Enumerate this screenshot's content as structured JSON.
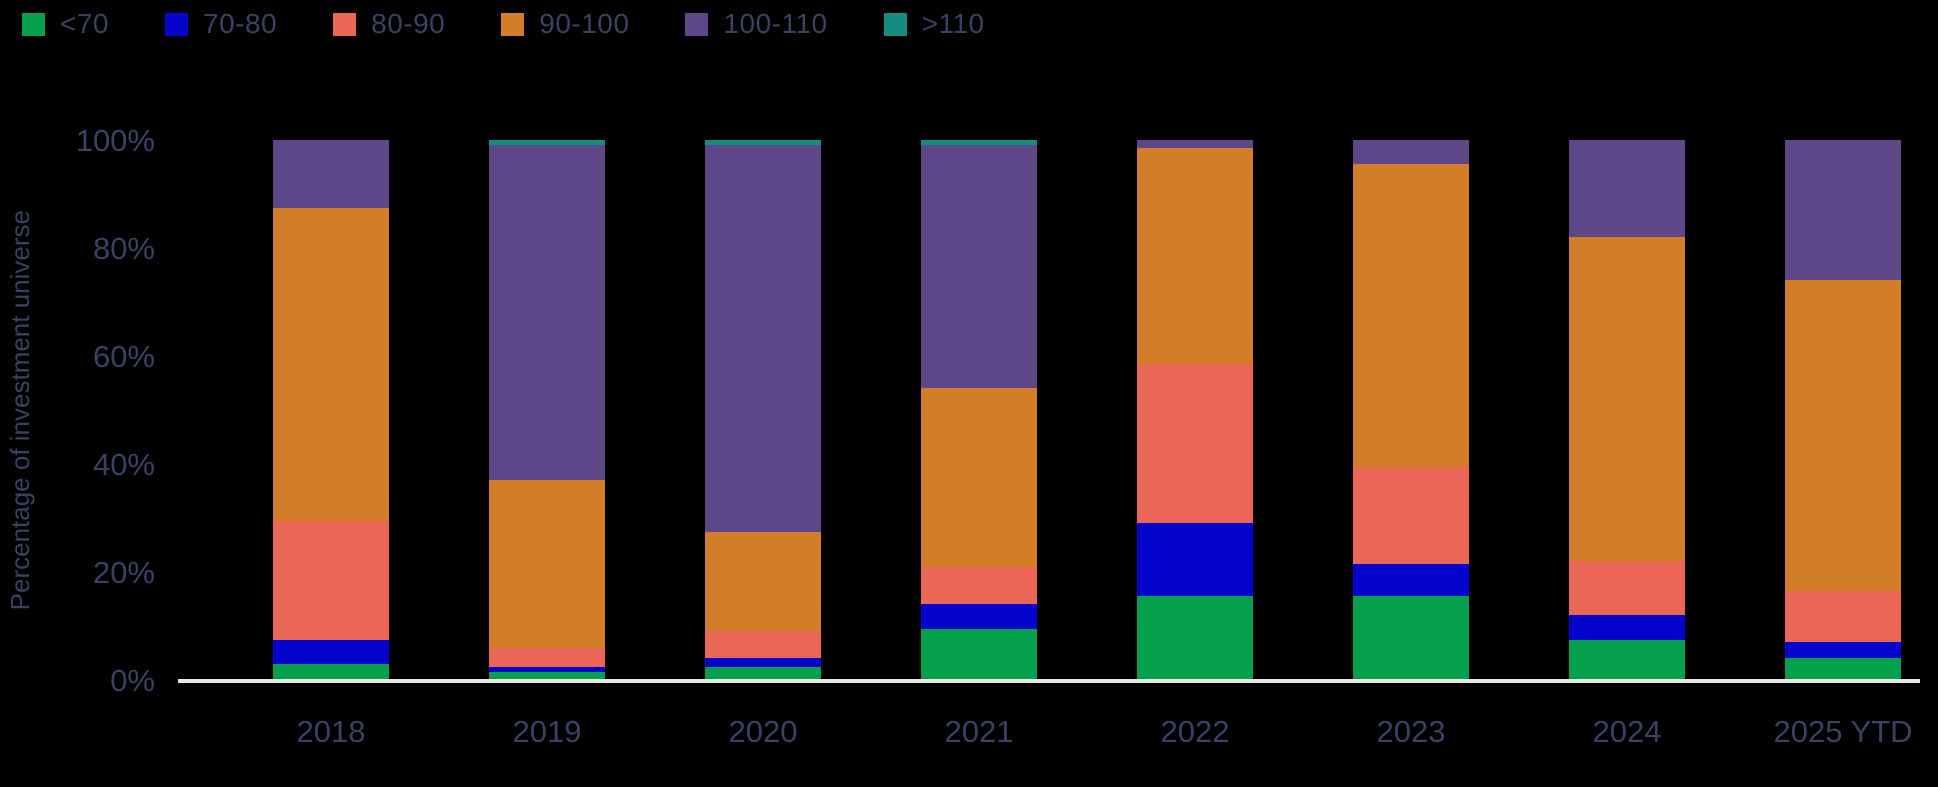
{
  "colors": {
    "background": "#000000",
    "text": "#3a4161",
    "baseline": "#e8e8e6"
  },
  "y_axis": {
    "title": "Percentage of investment universe",
    "ticks": [
      {
        "label": "100%",
        "value": 100
      },
      {
        "label": "80%",
        "value": 80
      },
      {
        "label": "60%",
        "value": 60
      },
      {
        "label": "40%",
        "value": 40
      },
      {
        "label": "20%",
        "value": 20
      },
      {
        "label": "0%",
        "value": 0
      }
    ]
  },
  "chart_data": {
    "type": "bar",
    "stacked": true,
    "title": "",
    "xlabel": "",
    "ylabel": "Percentage of investment universe",
    "ylim": [
      0,
      100
    ],
    "unit": "%",
    "legend_position": "top-left",
    "grid": false,
    "categories": [
      "2018",
      "2019",
      "2020",
      "2021",
      "2022",
      "2023",
      "2024",
      "2025 YTD"
    ],
    "series": [
      {
        "name": "<70",
        "color": "#04a04c",
        "values": [
          3,
          1.5,
          2.5,
          9.5,
          15.5,
          15.5,
          7.5,
          4
        ]
      },
      {
        "name": "70-80",
        "color": "#0404cc",
        "values": [
          4.5,
          1,
          1.5,
          4.5,
          13.5,
          6,
          4.5,
          3
        ]
      },
      {
        "name": "80-90",
        "color": "#ec6658",
        "values": [
          22,
          3.5,
          5,
          7,
          29.5,
          18,
          10,
          9.5
        ]
      },
      {
        "name": "90-100",
        "color": "#d27e28",
        "values": [
          58,
          31,
          18.5,
          33,
          40,
          56,
          60,
          57.5
        ]
      },
      {
        "name": "100-110",
        "color": "#5e4788",
        "values": [
          12.5,
          62,
          71.5,
          45,
          1.5,
          4.5,
          18,
          26
        ]
      },
      {
        "name": ">110",
        "color": "#148c80",
        "values": [
          0,
          1,
          1,
          1,
          0,
          0,
          0,
          0
        ]
      }
    ]
  }
}
